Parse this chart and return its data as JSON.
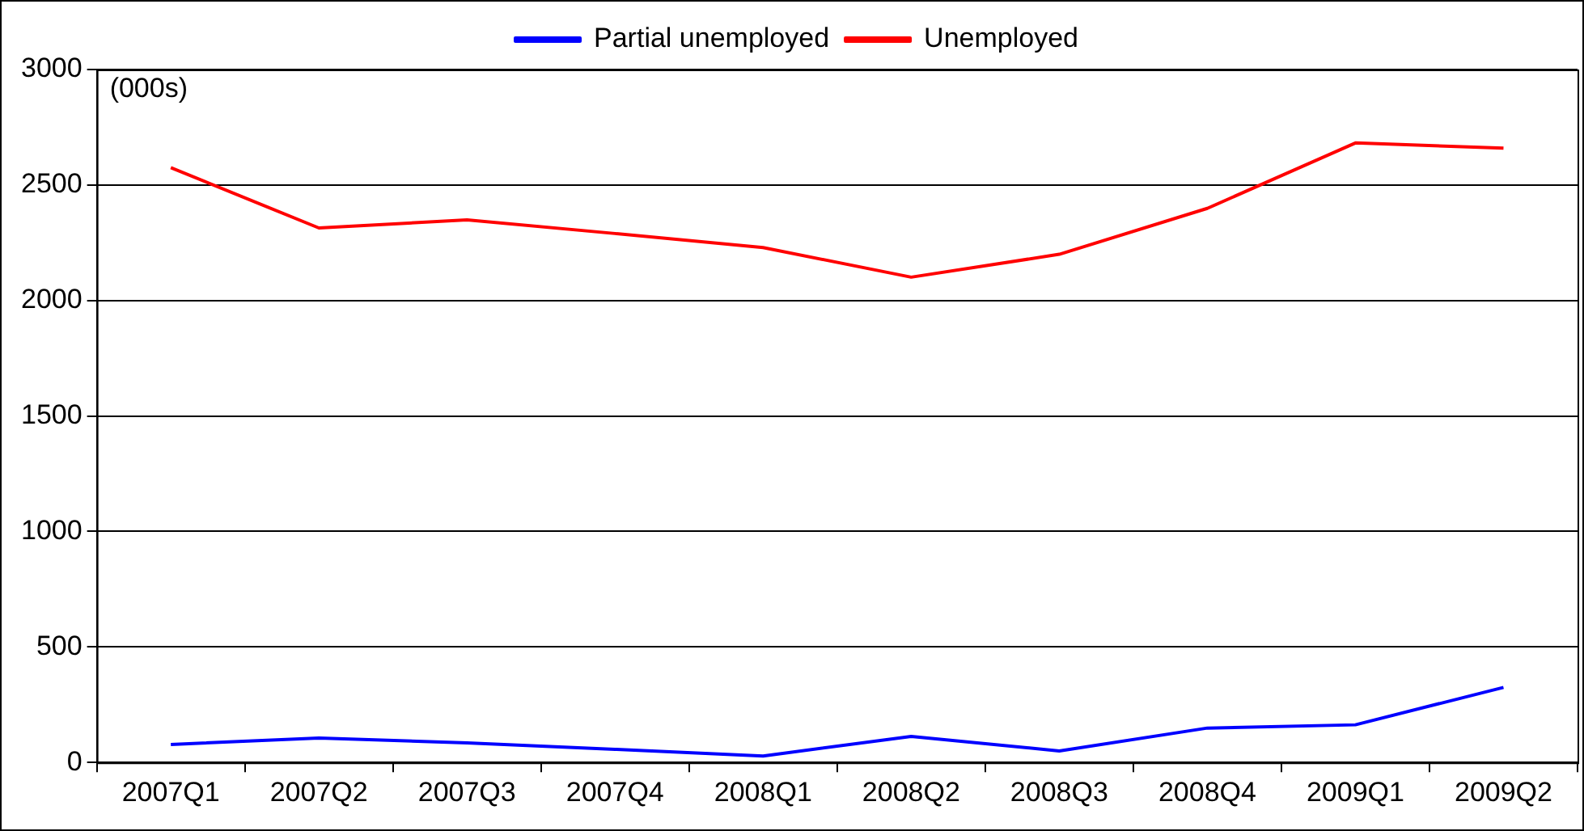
{
  "chart_data": {
    "type": "line",
    "ylabel": "(000s)",
    "categories": [
      "2007Q1",
      "2007Q2",
      "2007Q3",
      "2007Q4",
      "2008Q1",
      "2008Q2",
      "2008Q3",
      "2008Q4",
      "2009Q1",
      "2009Q2"
    ],
    "series": [
      {
        "name": "Partial unemployed",
        "color": "#0000ff",
        "values": [
          78,
          106,
          85,
          57,
          28,
          113,
          50,
          149,
          163,
          325
        ]
      },
      {
        "name": "Unemployed",
        "color": "#ff0000",
        "values": [
          2575,
          2314,
          2349,
          2290,
          2229,
          2101,
          2200,
          2399,
          2682,
          2660
        ]
      }
    ],
    "ylim": [
      0,
      3000
    ],
    "yticks": [
      0,
      500,
      1000,
      1500,
      2000,
      2500,
      3000
    ],
    "grid": "y",
    "legend": "top",
    "marker": "none",
    "line_style": "solid"
  }
}
